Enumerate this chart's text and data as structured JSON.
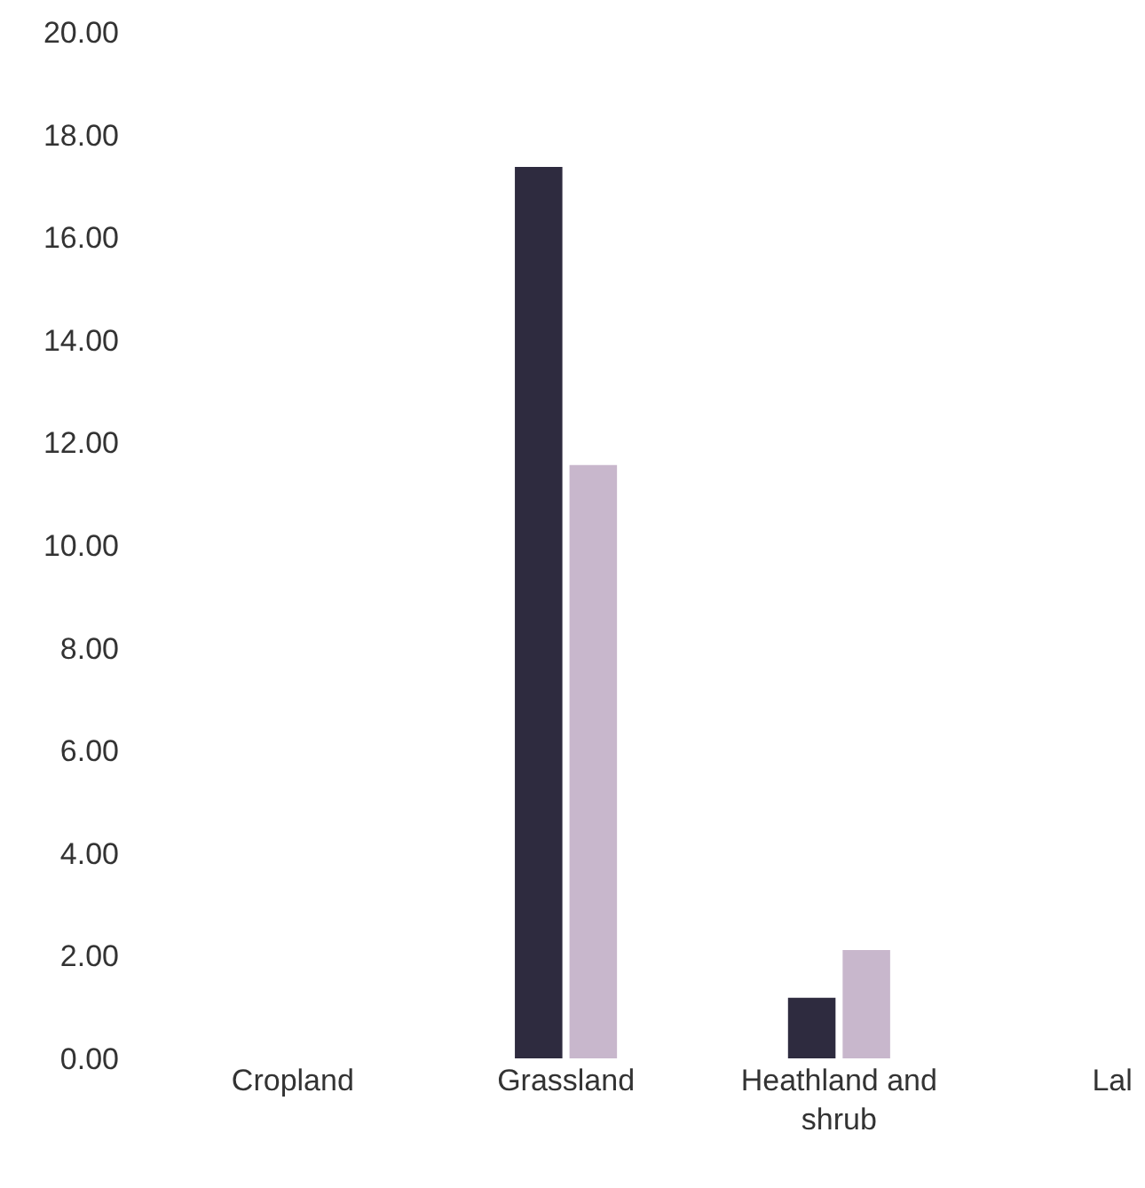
{
  "chart_data": {
    "type": "bar",
    "categories": [
      "Cropland",
      "Grassland",
      "Heathland and shrub",
      "Lal"
    ],
    "series": [
      {
        "color": "#2e2b3f",
        "values": [
          null,
          17.37,
          1.18,
          null
        ]
      },
      {
        "color": "#c8b7cc",
        "values": [
          null,
          11.56,
          2.11,
          null
        ]
      }
    ],
    "ylim": [
      0,
      20
    ],
    "yticks": [
      {
        "value": 0,
        "label": "0.00"
      },
      {
        "value": 2,
        "label": "2.00"
      },
      {
        "value": 4,
        "label": "4.00"
      },
      {
        "value": 6,
        "label": "6.00"
      },
      {
        "value": 8,
        "label": "8.00"
      },
      {
        "value": 10,
        "label": "10.00"
      },
      {
        "value": 12,
        "label": "12.00"
      },
      {
        "value": 14,
        "label": "14.00"
      },
      {
        "value": 16,
        "label": "16.00"
      },
      {
        "value": 18,
        "label": "18.00"
      },
      {
        "value": 20,
        "label": "20.00"
      }
    ],
    "grid": false
  }
}
